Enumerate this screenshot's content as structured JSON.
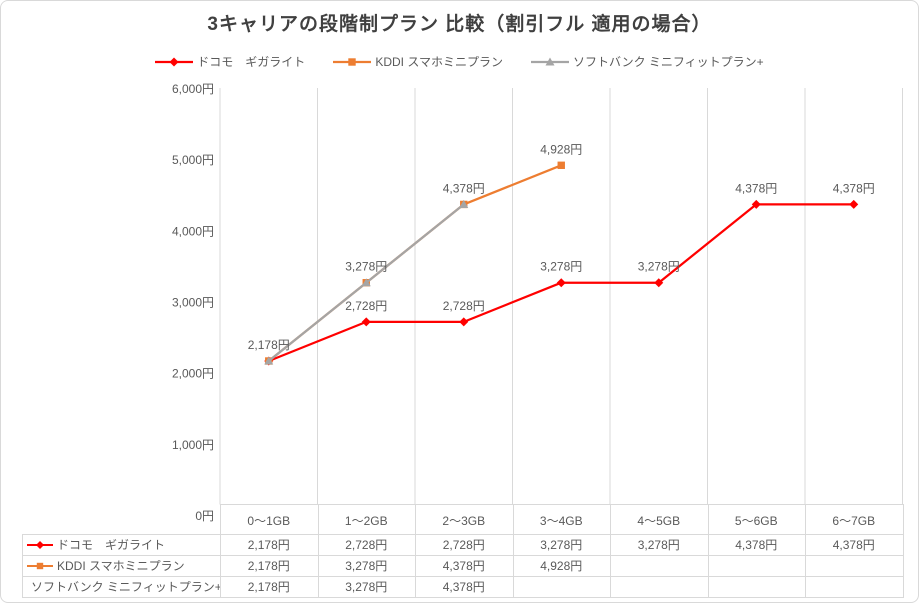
{
  "chart_data": {
    "type": "line",
    "title": "3キャリアの段階制プラン 比較（割引フル 適用の場合）",
    "unit": "円",
    "categories": [
      "0〜1GB",
      "1〜2GB",
      "2〜3GB",
      "3〜4GB",
      "4〜5GB",
      "5〜6GB",
      "6〜7GB"
    ],
    "series": [
      {
        "id": "docomo",
        "name": "ドコモ　ギガライト",
        "color": "#FF0000",
        "marker": "diamond",
        "values": [
          2178,
          2728,
          2728,
          3278,
          3278,
          4378,
          4378
        ],
        "label_indices": [
          0,
          1,
          2,
          3,
          4,
          5,
          6
        ]
      },
      {
        "id": "kddi",
        "name": "KDDI スマホミニプラン",
        "color": "#ED7D31",
        "marker": "square",
        "values": [
          2178,
          3278,
          4378,
          4928,
          null,
          null,
          null
        ],
        "label_indices": [
          1,
          2,
          3
        ]
      },
      {
        "id": "softbank",
        "name": "ソフトバンク ミニフィットプラン+",
        "color": "#A5A5A5",
        "marker": "triangle",
        "values": [
          2178,
          3278,
          4378,
          null,
          null,
          null,
          null
        ],
        "label_indices": []
      }
    ],
    "ylim": [
      0,
      6000
    ],
    "ytick_labels": [
      "0円",
      "1,000円",
      "2,000円",
      "3,000円",
      "4,000円",
      "5,000円",
      "6,000円"
    ],
    "grid": "vertical",
    "legend_position": "top",
    "show_data_table": true
  },
  "styles": {
    "title_color": "#404040",
    "text_color": "#595959",
    "grid_color": "#D9D9D9",
    "background": "#FFFFFF"
  }
}
